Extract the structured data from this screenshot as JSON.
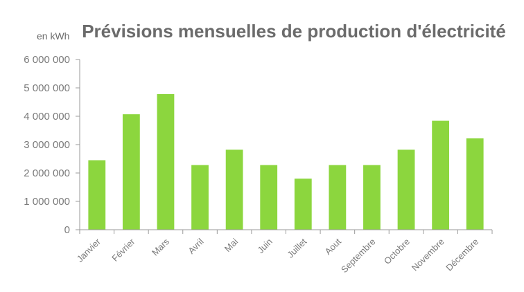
{
  "chart_data": {
    "type": "bar",
    "title": "Prévisions mensuelles de production d'électricité",
    "unit_label": "en kWh",
    "categories": [
      "Janvier",
      "Février",
      "Mars",
      "Avril",
      "Mai",
      "Juin",
      "Juillet",
      "Aout",
      "Septembre",
      "Octobre",
      "Novembre",
      "Décembre"
    ],
    "values": [
      2450000,
      4070000,
      4780000,
      2280000,
      2820000,
      2280000,
      1800000,
      2280000,
      2280000,
      2820000,
      3840000,
      3220000
    ],
    "ylim": [
      0,
      6000000
    ],
    "yticks": [
      0,
      1000000,
      2000000,
      3000000,
      4000000,
      5000000,
      6000000
    ],
    "ytick_labels": [
      "0",
      "1 000 000",
      "2 000 000",
      "3 000 000",
      "4 000 000",
      "5 000 000",
      "6 000 000"
    ],
    "grid": false,
    "bar_color": "#8cd63e"
  }
}
